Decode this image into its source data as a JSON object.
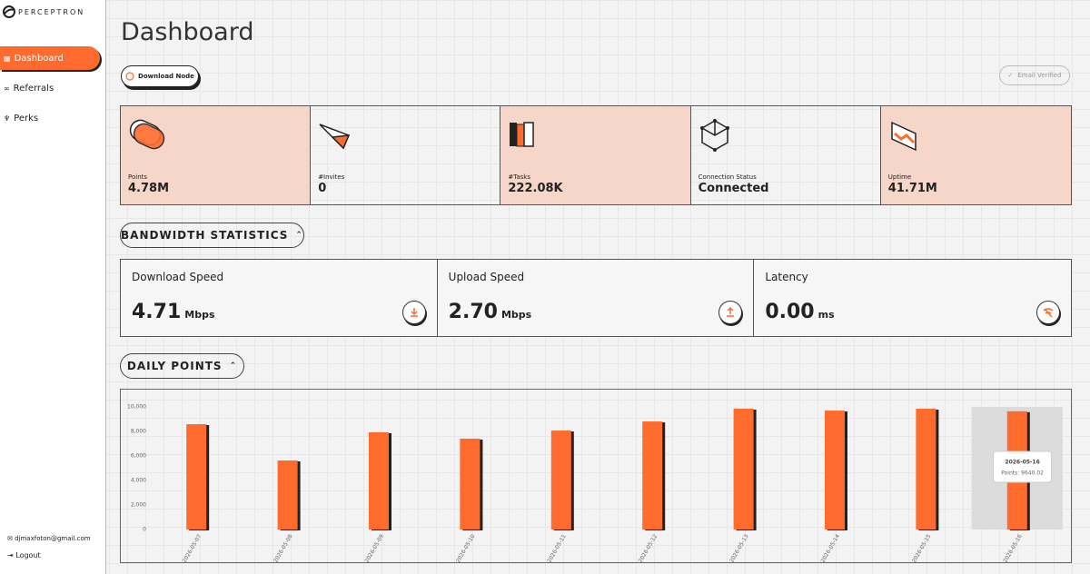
{
  "sidebar": {
    "brand": "PERCEPTRON",
    "nav": [
      "Dashboard",
      "Referrals",
      "Perks"
    ],
    "email": "djmaxfoton@gmail.com",
    "logout": "Logout"
  },
  "header": {
    "title": "Dashboard",
    "download_button": "Download Node",
    "email_status": "Email Verified"
  },
  "stats": [
    {
      "label": "Points",
      "value": "4.78M"
    },
    {
      "label": "#Invites",
      "value": "0"
    },
    {
      "label": "#Tasks",
      "value": "222.08K"
    },
    {
      "label": "Connection Status",
      "value": "Connected"
    },
    {
      "label": "Uptime",
      "value": "41.71M"
    }
  ],
  "bandwidth": {
    "title": "BANDWIDTH STATISTICS",
    "cards": [
      {
        "label": "Download Speed",
        "value": "4.71",
        "unit": "Mbps"
      },
      {
        "label": "Upload Speed",
        "value": "2.70",
        "unit": "Mbps"
      },
      {
        "label": "Latency",
        "value": "0.00",
        "unit": "ms"
      }
    ]
  },
  "daily_points": {
    "title": "DAILY POINTS"
  },
  "chart_data": {
    "type": "bar",
    "categories": [
      "2026-05-07",
      "2026-05-08",
      "2026-05-09",
      "2026-05-10",
      "2026-05-11",
      "2026-05-12",
      "2026-05-13",
      "2026-05-14",
      "2026-05-15",
      "2026-05-16"
    ],
    "values": [
      8590,
      5630,
      7930,
      7410,
      8070,
      8810,
      9850,
      9700,
      9850,
      9640.02
    ],
    "color": "#ff6b2c",
    "ylim": [
      0,
      10000
    ],
    "yticks": [
      0,
      {
        "value": 2000,
        "label": "2,000"
      },
      {
        "value": 4000,
        "label": "4,000"
      },
      {
        "value": 6000,
        "label": "6,000"
      },
      {
        "value": 8000,
        "label": "8,000"
      },
      {
        "value": 10000,
        "label": "10,000"
      }
    ],
    "tooltip": {
      "title": "2026-05-16",
      "text": "Points: 9640.02"
    }
  }
}
